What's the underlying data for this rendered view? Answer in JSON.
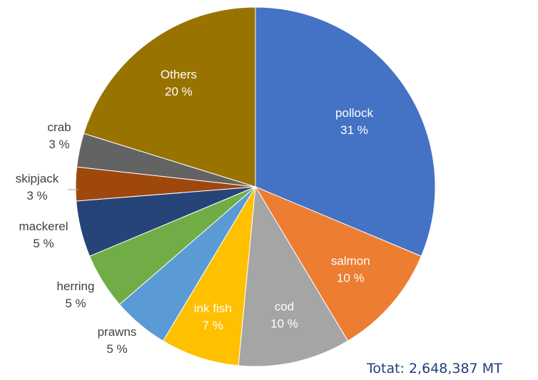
{
  "chart_data": {
    "type": "pie",
    "title": "",
    "slices": [
      {
        "name": "pollock",
        "value": 31,
        "label": "31 %",
        "color": "#4472c4"
      },
      {
        "name": "salmon",
        "value": 10,
        "label": "10 %",
        "color": "#ed7d31"
      },
      {
        "name": "cod",
        "value": 10,
        "label": "10 %",
        "color": "#a5a5a5"
      },
      {
        "name": "ink fish",
        "value": 7,
        "label": "7 %",
        "color": "#ffc000"
      },
      {
        "name": "prawns",
        "value": 5,
        "label": "5 %",
        "color": "#5b9bd5"
      },
      {
        "name": "herring",
        "value": 5,
        "label": "5 %",
        "color": "#70ad47"
      },
      {
        "name": "mackerel",
        "value": 5,
        "label": "5 %",
        "color": "#264478"
      },
      {
        "name": "skipjack",
        "value": 3,
        "label": "3 %",
        "color": "#9e480e"
      },
      {
        "name": "crab",
        "value": 3,
        "label": "3 %",
        "color": "#636363"
      },
      {
        "name": "Others",
        "value": 20,
        "label": "20 %",
        "color": "#997300"
      }
    ],
    "total_label": "Totat: 2,648,387 MT"
  }
}
